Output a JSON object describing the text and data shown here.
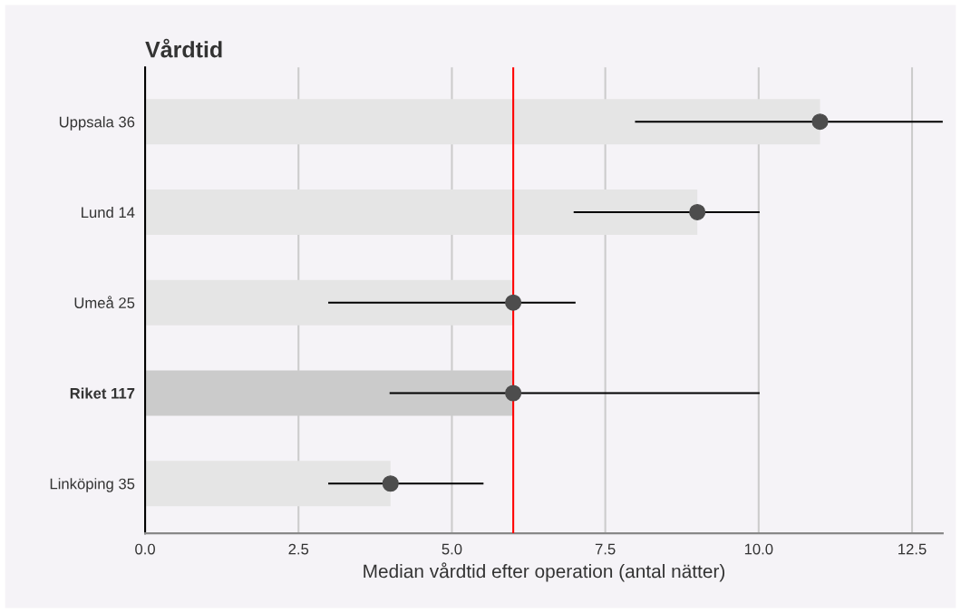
{
  "chart_data": {
    "type": "bar",
    "orientation": "horizontal",
    "title": "Vårdtid",
    "xlabel": "Median vårdtid efter operation (antal nätter)",
    "categories": [
      "Uppsala 36",
      "Lund 14",
      "Umeå 25",
      "Riket 117",
      "Linköping 35"
    ],
    "series": [
      {
        "values": [
          11,
          9,
          6,
          6,
          4
        ],
        "colors": [
          "#e5e5e5",
          "#e5e5e5",
          "#e5e5e5",
          "#cbcbcb",
          "#e5e5e5"
        ]
      },
      {
        "type": "scatter",
        "color": "#4d4d4d",
        "values": [
          11,
          9,
          6,
          6,
          4
        ],
        "errors": [
          [
            8,
            13
          ],
          [
            7,
            10
          ],
          [
            3,
            7
          ],
          [
            4,
            10
          ],
          [
            3,
            5.5
          ]
        ]
      }
    ],
    "xlim": [
      0,
      13
    ],
    "xticks": [
      {
        "value": 0,
        "label": "0.0"
      },
      {
        "value": 2.5,
        "label": "2.5"
      },
      {
        "value": 5,
        "label": "5.0"
      },
      {
        "value": 7.5,
        "label": "7.5"
      },
      {
        "value": 10,
        "label": "10.0"
      },
      {
        "value": 12.5,
        "label": "12.5"
      }
    ],
    "ref_lines": [
      {
        "axis": "x",
        "value": 6,
        "color": "#ff0000"
      }
    ],
    "grid": "x",
    "marker": "circle"
  }
}
